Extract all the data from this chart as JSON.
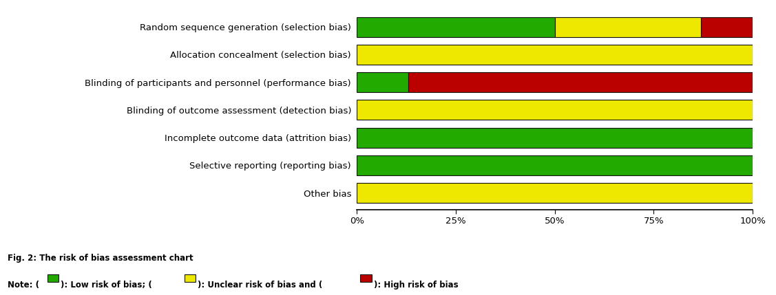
{
  "categories": [
    "Random sequence generation (selection bias)",
    "Allocation concealment (selection bias)",
    "Blinding of participants and personnel (performance bias)",
    "Blinding of outcome assessment (detection bias)",
    "Incomplete outcome data (attrition bias)",
    "Selective reporting (reporting bias)",
    "Other bias"
  ],
  "segments": [
    {
      "green": 50,
      "yellow": 37,
      "red": 13
    },
    {
      "green": 0,
      "yellow": 100,
      "red": 0
    },
    {
      "green": 13,
      "yellow": 0,
      "red": 87
    },
    {
      "green": 0,
      "yellow": 100,
      "red": 0
    },
    {
      "green": 100,
      "yellow": 0,
      "red": 0
    },
    {
      "green": 100,
      "yellow": 0,
      "red": 0
    },
    {
      "green": 0,
      "yellow": 100,
      "red": 0
    }
  ],
  "colors": {
    "green": "#22AA00",
    "yellow": "#EEE800",
    "red": "#BB0000"
  },
  "edgecolor": "#111111",
  "bar_height": 0.72,
  "figsize": [
    11.27,
    4.29
  ],
  "dpi": 100,
  "caption_line1": "Fig. 2: The risk of bias assessment chart",
  "xlabel_ticks": [
    0,
    25,
    50,
    75,
    100
  ],
  "xlabel_ticklabels": [
    "0%",
    "25%",
    "50%",
    "75%",
    "100%"
  ],
  "label_fontsize": 9.5,
  "caption_fontsize": 8.5,
  "note_parts": [
    "Note: (",
    "): Low risk of bias; (",
    "): Unclear risk of bias and (",
    "): High risk of bias"
  ],
  "note_colors": [
    "green",
    "yellow",
    "red"
  ]
}
